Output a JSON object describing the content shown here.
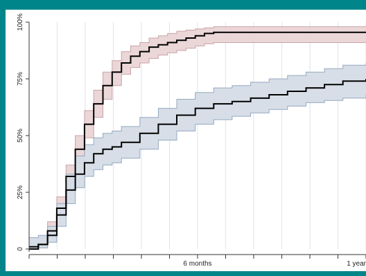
{
  "chart_data": {
    "type": "line",
    "title": "",
    "xlabel": "",
    "ylabel": "",
    "x_unit": "days",
    "xlim": [
      0,
      365
    ],
    "ylim": [
      0,
      100
    ],
    "grid": true,
    "legend": "none",
    "y_ticks": [
      {
        "value": 0,
        "label": "0"
      },
      {
        "value": 25,
        "label": "25%"
      },
      {
        "value": 50,
        "label": "50%"
      },
      {
        "value": 75,
        "label": "75%"
      },
      {
        "value": 100,
        "label": "100%"
      }
    ],
    "x_ticks": [
      {
        "value": 0,
        "label": ""
      },
      {
        "value": 30.4,
        "label": ""
      },
      {
        "value": 60.8,
        "label": ""
      },
      {
        "value": 91.3,
        "label": ""
      },
      {
        "value": 121.7,
        "label": ""
      },
      {
        "value": 152.1,
        "label": ""
      },
      {
        "value": 182.5,
        "label": "6 months"
      },
      {
        "value": 212.9,
        "label": ""
      },
      {
        "value": 243.3,
        "label": ""
      },
      {
        "value": 273.8,
        "label": ""
      },
      {
        "value": 304.2,
        "label": ""
      },
      {
        "value": 334.6,
        "label": ""
      },
      {
        "value": 365,
        "label": "1 year"
      }
    ],
    "series": [
      {
        "color": "#000000",
        "band_fill": "#ead4d6",
        "band_stroke": "#c9a3a7",
        "x": [
          0,
          10,
          20,
          30,
          40,
          50,
          60,
          70,
          80,
          90,
          100,
          110,
          120,
          130,
          140,
          150,
          160,
          170,
          180,
          190,
          200,
          365
        ],
        "y": [
          0,
          2,
          8,
          18,
          32,
          44,
          55,
          64,
          72,
          78,
          82,
          85,
          87,
          89,
          90,
          91,
          92,
          93,
          94,
          95,
          95.5,
          95.5
        ],
        "lower": [
          0,
          0.5,
          5,
          14,
          27,
          38,
          49,
          58,
          66,
          72,
          77,
          80,
          82,
          84,
          85.5,
          86.5,
          87.5,
          88.5,
          89.5,
          90.5,
          91,
          91
        ],
        "upper": [
          3,
          5,
          12,
          23,
          37,
          50,
          61,
          70,
          78,
          83,
          87,
          89.5,
          91,
          93,
          94,
          95,
          96,
          96.5,
          97,
          97.5,
          98,
          98
        ]
      },
      {
        "color": "#000000",
        "band_fill": "#d5dce6",
        "band_stroke": "#94a8c0",
        "x": [
          0,
          10,
          20,
          30,
          40,
          50,
          60,
          70,
          80,
          90,
          100,
          120,
          140,
          160,
          180,
          200,
          220,
          240,
          260,
          280,
          300,
          320,
          340,
          365
        ],
        "y": [
          1,
          2,
          6,
          15,
          26,
          33,
          38,
          42,
          44,
          45,
          47,
          51,
          55,
          59,
          62,
          64,
          65,
          66.5,
          68,
          69.5,
          71,
          72.5,
          74,
          75
        ],
        "lower": [
          0,
          0.5,
          3,
          10,
          20,
          27,
          32,
          35,
          37,
          38,
          40,
          44,
          48,
          52,
          55,
          57,
          58.5,
          60,
          61.5,
          63,
          64.5,
          65.5,
          66.5,
          68
        ],
        "upper": [
          5,
          6,
          10,
          20,
          33,
          41,
          46,
          49,
          51,
          52,
          54,
          58,
          62,
          66,
          69,
          71,
          72,
          73.5,
          75,
          76.5,
          78,
          79.5,
          81,
          82
        ]
      }
    ]
  }
}
